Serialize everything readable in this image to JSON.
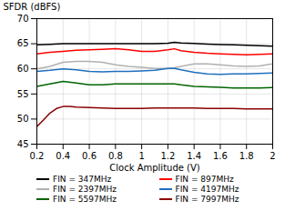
{
  "chart_data": {
    "type": "line",
    "xlabel": "Clock Amplitude (V)",
    "ylabel": "SFDR (dBFS)",
    "xlim": [
      0.2,
      2.0
    ],
    "ylim": [
      45,
      70
    ],
    "xticks": [
      0.2,
      0.4,
      0.6,
      0.8,
      1,
      1.2,
      1.4,
      1.6,
      1.8,
      2
    ],
    "yticks": [
      45,
      50,
      55,
      60,
      65,
      70
    ],
    "grid": true,
    "series": [
      {
        "name": "FIN = 347MHz",
        "color": "#000000",
        "x": [
          0.2,
          0.3,
          0.4,
          0.5,
          0.6,
          0.7,
          0.8,
          0.9,
          1.0,
          1.1,
          1.2,
          1.25,
          1.3,
          1.4,
          1.5,
          1.6,
          1.7,
          1.8,
          1.9,
          2.0
        ],
        "values": [
          64.8,
          64.9,
          65.0,
          65.0,
          65.0,
          65.0,
          65.0,
          65.0,
          65.0,
          65.0,
          65.1,
          65.3,
          65.15,
          65.05,
          64.95,
          64.85,
          64.8,
          64.7,
          64.6,
          64.5
        ]
      },
      {
        "name": "FIN = 897MHz",
        "color": "#ff0000",
        "x": [
          0.2,
          0.3,
          0.4,
          0.5,
          0.6,
          0.7,
          0.8,
          0.9,
          1.0,
          1.1,
          1.2,
          1.25,
          1.3,
          1.4,
          1.5,
          1.6,
          1.7,
          1.8,
          1.9,
          2.0
        ],
        "values": [
          63.0,
          63.3,
          63.5,
          63.7,
          63.8,
          63.9,
          64.0,
          63.8,
          63.5,
          63.5,
          63.8,
          64.0,
          63.6,
          63.3,
          63.1,
          63.0,
          62.9,
          62.8,
          62.9,
          63.0
        ]
      },
      {
        "name": "FIN = 2397MHz",
        "color": "#b0b0b0",
        "x": [
          0.2,
          0.3,
          0.4,
          0.5,
          0.6,
          0.7,
          0.8,
          0.9,
          1.0,
          1.1,
          1.2,
          1.25,
          1.3,
          1.4,
          1.5,
          1.6,
          1.7,
          1.8,
          1.9,
          2.0
        ],
        "values": [
          60.0,
          60.5,
          61.3,
          61.5,
          61.5,
          61.3,
          60.8,
          60.5,
          60.3,
          60.1,
          60.1,
          60.2,
          60.5,
          61.0,
          61.0,
          60.8,
          60.6,
          60.5,
          60.6,
          61.0
        ]
      },
      {
        "name": "FIN = 4197MHz",
        "color": "#1f6fbf",
        "x": [
          0.2,
          0.3,
          0.4,
          0.5,
          0.6,
          0.7,
          0.8,
          0.9,
          1.0,
          1.1,
          1.2,
          1.25,
          1.3,
          1.4,
          1.5,
          1.6,
          1.7,
          1.8,
          1.9,
          2.0
        ],
        "values": [
          59.5,
          59.7,
          60.0,
          59.8,
          59.5,
          59.4,
          59.5,
          59.5,
          59.6,
          59.7,
          60.1,
          60.1,
          59.8,
          59.3,
          59.0,
          58.9,
          59.0,
          59.0,
          59.1,
          59.2
        ]
      },
      {
        "name": "FIN = 5597MHz",
        "color": "#006400",
        "x": [
          0.2,
          0.3,
          0.4,
          0.5,
          0.6,
          0.7,
          0.8,
          0.9,
          1.0,
          1.1,
          1.2,
          1.25,
          1.3,
          1.4,
          1.5,
          1.6,
          1.7,
          1.8,
          1.9,
          2.0
        ],
        "values": [
          56.5,
          57.0,
          57.5,
          57.2,
          56.8,
          56.8,
          57.0,
          57.0,
          57.0,
          57.0,
          57.0,
          57.0,
          56.8,
          56.5,
          56.4,
          56.3,
          56.2,
          56.2,
          56.2,
          56.3
        ]
      },
      {
        "name": "FIN = 7997MHz",
        "color": "#8b0000",
        "x": [
          0.2,
          0.25,
          0.3,
          0.35,
          0.4,
          0.45,
          0.5,
          0.6,
          0.7,
          0.8,
          0.9,
          1.0,
          1.1,
          1.2,
          1.3,
          1.4,
          1.5,
          1.6,
          1.7,
          1.8,
          1.9,
          2.0
        ],
        "values": [
          48.5,
          49.8,
          51.2,
          52.1,
          52.5,
          52.5,
          52.4,
          52.3,
          52.2,
          52.1,
          52.1,
          52.1,
          52.2,
          52.2,
          52.2,
          52.2,
          52.1,
          52.1,
          52.1,
          52.0,
          52.0,
          52.0
        ]
      }
    ]
  }
}
